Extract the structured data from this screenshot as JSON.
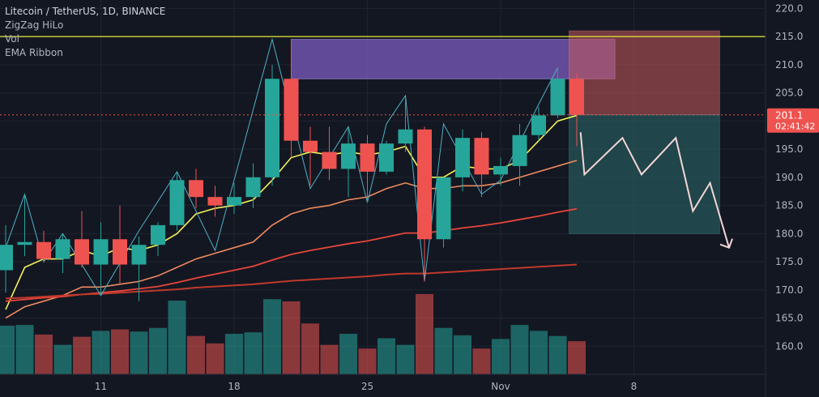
{
  "legend": {
    "title": "Litecoin / TetherUS, 1D, BINANCE",
    "indicators": [
      "ZigZag HiLo",
      "Vol",
      "EMA Ribbon"
    ]
  },
  "price_tag": {
    "price": "201.1",
    "countdown": "02:41:42"
  },
  "colors": {
    "background": "#131722",
    "up": "#26a69a",
    "down": "#ef5350",
    "grid": "#1f2430",
    "resistance": "#e7e93d",
    "zigzag": "#4fb0c6",
    "ema_fast": "#f4f05a",
    "ema_mid": "#ef8a5e",
    "ema_slow": "#e8463a",
    "ema_long": "#c0392b",
    "purple_zone": "#7b5cbf",
    "red_zone": "#c65a5a",
    "green_zone": "#2c6b6b",
    "arrow": "#f3d6d6"
  },
  "chart_data": {
    "type": "candlestick",
    "symbol": "Litecoin / TetherUS",
    "timeframe": "1D",
    "exchange": "BINANCE",
    "y_axis": {
      "ticks": [
        160.0,
        165.0,
        170.0,
        175.0,
        180.0,
        185.0,
        190.0,
        195.0,
        200.0,
        205.0,
        210.0,
        215.0,
        220.0
      ],
      "ylim": [
        155.0,
        221.5
      ]
    },
    "x_axis": {
      "ticks": [
        {
          "label": "11",
          "index": 5
        },
        {
          "label": "18",
          "index": 12
        },
        {
          "label": "25",
          "index": 19
        },
        {
          "label": "Nov",
          "index": 26
        },
        {
          "label": "8",
          "index": 33
        }
      ]
    },
    "candles": [
      {
        "o": 173.5,
        "h": 181.5,
        "l": 169.5,
        "c": 178.0,
        "v": 66
      },
      {
        "o": 178.0,
        "h": 187.0,
        "l": 176.0,
        "c": 178.5,
        "v": 67
      },
      {
        "o": 178.5,
        "h": 180.5,
        "l": 175.0,
        "c": 175.5,
        "v": 54
      },
      {
        "o": 175.5,
        "h": 180.0,
        "l": 173.0,
        "c": 179.0,
        "v": 40
      },
      {
        "o": 179.0,
        "h": 184.0,
        "l": 174.0,
        "c": 174.5,
        "v": 51
      },
      {
        "o": 174.5,
        "h": 182.0,
        "l": 169.0,
        "c": 179.0,
        "v": 59
      },
      {
        "o": 179.0,
        "h": 185.0,
        "l": 171.0,
        "c": 174.5,
        "v": 61
      },
      {
        "o": 174.5,
        "h": 179.5,
        "l": 168.0,
        "c": 178.0,
        "v": 58
      },
      {
        "o": 178.0,
        "h": 182.0,
        "l": 176.0,
        "c": 181.5,
        "v": 63
      },
      {
        "o": 181.5,
        "h": 191.0,
        "l": 180.5,
        "c": 189.5,
        "v": 100
      },
      {
        "o": 189.5,
        "h": 191.5,
        "l": 184.5,
        "c": 186.5,
        "v": 52
      },
      {
        "o": 186.5,
        "h": 188.5,
        "l": 183.0,
        "c": 185.0,
        "v": 42
      },
      {
        "o": 185.0,
        "h": 189.0,
        "l": 183.5,
        "c": 186.5,
        "v": 55
      },
      {
        "o": 186.5,
        "h": 192.5,
        "l": 184.5,
        "c": 190.0,
        "v": 57
      },
      {
        "o": 190.0,
        "h": 210.0,
        "l": 188.5,
        "c": 207.5,
        "v": 102
      },
      {
        "o": 207.5,
        "h": 214.0,
        "l": 193.5,
        "c": 196.5,
        "v": 99
      },
      {
        "o": 196.5,
        "h": 199.0,
        "l": 188.5,
        "c": 194.5,
        "v": 69
      },
      {
        "o": 194.5,
        "h": 199.0,
        "l": 189.5,
        "c": 191.5,
        "v": 40
      },
      {
        "o": 191.5,
        "h": 199.0,
        "l": 186.5,
        "c": 196.0,
        "v": 55
      },
      {
        "o": 196.0,
        "h": 197.5,
        "l": 185.5,
        "c": 191.0,
        "v": 35
      },
      {
        "o": 191.0,
        "h": 196.5,
        "l": 190.5,
        "c": 196.0,
        "v": 49
      },
      {
        "o": 196.0,
        "h": 204.0,
        "l": 194.5,
        "c": 198.5,
        "v": 40
      },
      {
        "o": 198.5,
        "h": 199.0,
        "l": 171.5,
        "c": 179.0,
        "v": 109
      },
      {
        "o": 179.0,
        "h": 190.0,
        "l": 177.5,
        "c": 190.0,
        "v": 63
      },
      {
        "o": 190.0,
        "h": 198.5,
        "l": 187.5,
        "c": 197.0,
        "v": 53
      },
      {
        "o": 197.0,
        "h": 198.0,
        "l": 186.5,
        "c": 190.5,
        "v": 35
      },
      {
        "o": 190.5,
        "h": 193.5,
        "l": 188.5,
        "c": 192.0,
        "v": 48
      },
      {
        "o": 192.0,
        "h": 199.5,
        "l": 188.5,
        "c": 197.5,
        "v": 67
      },
      {
        "o": 197.5,
        "h": 202.5,
        "l": 196.5,
        "c": 201.0,
        "v": 59
      },
      {
        "o": 201.0,
        "h": 209.5,
        "l": 200.5,
        "c": 207.5,
        "v": 52
      },
      {
        "o": 207.5,
        "h": 208.5,
        "l": 195.5,
        "c": 201.1,
        "v": 45
      }
    ],
    "zigzag": [
      [
        0,
        177.5
      ],
      [
        1,
        187.0
      ],
      [
        2,
        175.0
      ],
      [
        3,
        180.0
      ],
      [
        5,
        169.0
      ],
      [
        7,
        180.5
      ],
      [
        9,
        191.0
      ],
      [
        11,
        177.0
      ],
      [
        14,
        214.5
      ],
      [
        16,
        188.0
      ],
      [
        18,
        199.0
      ],
      [
        19,
        185.5
      ],
      [
        20,
        199.5
      ],
      [
        21,
        204.5
      ],
      [
        22,
        171.5
      ],
      [
        23,
        199.5
      ],
      [
        25,
        187.0
      ],
      [
        26,
        189.5
      ],
      [
        28,
        203.0
      ],
      [
        29,
        209.5
      ]
    ],
    "ema_ribbon": [
      {
        "name": "fast",
        "values": [
          166.5,
          174.0,
          175.5,
          175.5,
          177.0,
          176.0,
          177.5,
          177.0,
          178.0,
          180.0,
          183.5,
          184.5,
          185.0,
          186.0,
          189.5,
          193.5,
          194.5,
          194.0,
          194.5,
          194.0,
          194.5,
          195.5,
          190.0,
          190.0,
          192.0,
          191.5,
          191.5,
          193.0,
          196.5,
          200.0,
          201.0
        ]
      },
      {
        "name": "mid1",
        "values": [
          165.0,
          167.0,
          168.0,
          169.0,
          170.5,
          170.5,
          171.0,
          171.5,
          172.5,
          174.0,
          175.5,
          176.5,
          177.5,
          178.5,
          181.5,
          183.5,
          184.5,
          185.0,
          186.0,
          186.5,
          188.0,
          189.0,
          188.0,
          188.0,
          188.5,
          188.5,
          189.0,
          190.0,
          191.0,
          192.0,
          193.0
        ]
      },
      {
        "name": "mid2",
        "values": [
          168.0,
          168.3,
          168.6,
          168.8,
          169.2,
          169.5,
          169.8,
          170.2,
          170.6,
          171.3,
          172.1,
          172.8,
          173.5,
          174.2,
          175.3,
          176.3,
          177.0,
          177.6,
          178.2,
          178.7,
          179.4,
          180.1,
          180.1,
          180.5,
          181.0,
          181.4,
          181.9,
          182.5,
          183.1,
          183.8,
          184.4
        ]
      },
      {
        "name": "long",
        "values": [
          168.5,
          168.6,
          168.8,
          169.0,
          169.2,
          169.3,
          169.5,
          169.7,
          169.9,
          170.1,
          170.4,
          170.6,
          170.8,
          171.0,
          171.3,
          171.6,
          171.8,
          172.0,
          172.2,
          172.4,
          172.7,
          172.9,
          172.9,
          173.1,
          173.3,
          173.5,
          173.7,
          173.9,
          174.1,
          174.3,
          174.5
        ]
      }
    ],
    "resistance": 215.0,
    "last_price": 201.1,
    "zones": [
      {
        "name": "purple-zone",
        "x_from": 15,
        "x_to": 32,
        "y_from": 207.5,
        "y_to": 214.5
      },
      {
        "name": "red-zone",
        "x_from": 29.6,
        "x_to": 37.5,
        "y_from": 201.1,
        "y_to": 216.0
      },
      {
        "name": "green-zone",
        "x_from": 29.6,
        "x_to": 37.5,
        "y_from": 180.0,
        "y_to": 201.1
      }
    ],
    "projection": [
      [
        30.2,
        198.0
      ],
      [
        30.4,
        190.5
      ],
      [
        32.4,
        197.0
      ],
      [
        33.4,
        190.5
      ],
      [
        35.2,
        197.0
      ],
      [
        36.1,
        184.0
      ],
      [
        37.0,
        189.0
      ],
      [
        38.0,
        177.5
      ]
    ]
  }
}
